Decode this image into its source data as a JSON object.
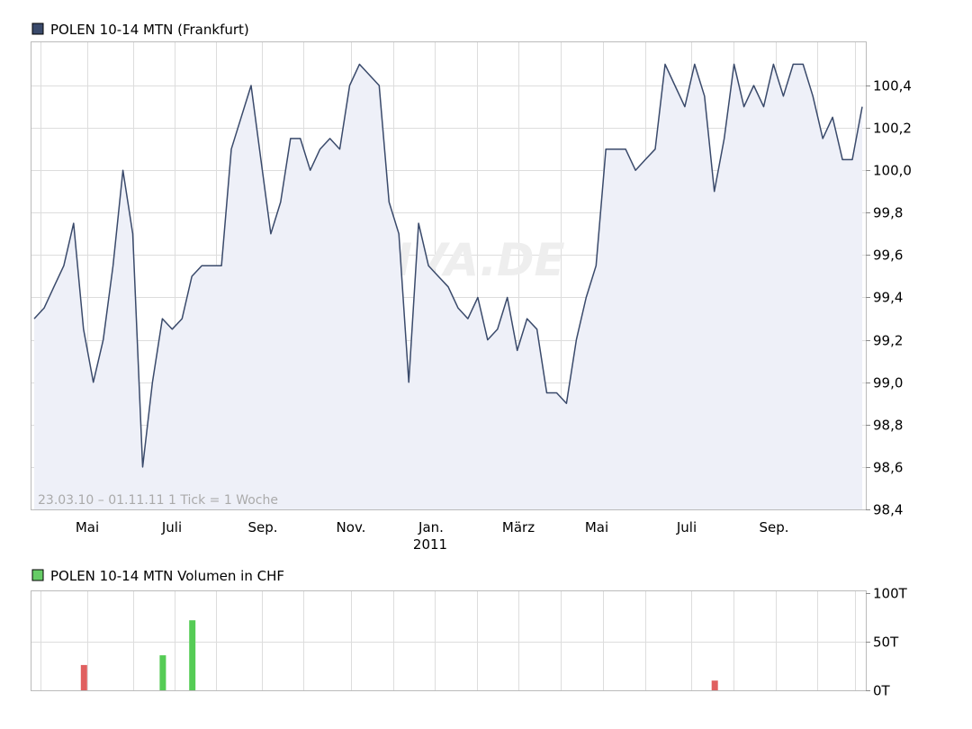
{
  "chart_data": [
    {
      "type": "area",
      "legend": {
        "label": "POLEN 10-14 MTN (Frankfurt)",
        "color": "#3a4a6b",
        "position": "top-left"
      },
      "info_text": "23.03.10 – 01.11.11   1 Tick = 1 Woche",
      "watermark": "ARIVA.DE",
      "x_tick_labels": [
        "Mai",
        "Juli",
        "Sep.",
        "Nov.",
        "Jan.",
        "März",
        "Mai",
        "Juli",
        "Sep."
      ],
      "x_year_label": "2011",
      "y_tick_labels": [
        "100,4",
        "100,2",
        "100,0",
        "99,8",
        "99,6",
        "99,4",
        "99,2",
        "99,0",
        "98,8",
        "98,6",
        "98,4"
      ],
      "ylim": [
        98.4,
        100.55
      ],
      "grid": true,
      "line_color": "#3a4a6b",
      "fill_color": "#eef0f8",
      "series": [
        {
          "values": [
            99.3,
            99.35,
            99.45,
            99.55,
            99.75,
            99.25,
            99.0,
            99.2,
            99.55,
            100.0,
            99.7,
            98.6,
            99.0,
            99.3,
            99.25,
            99.3,
            99.5,
            99.55,
            99.55,
            99.55,
            100.1,
            100.25,
            100.4,
            100.05,
            99.7,
            99.85,
            100.15,
            100.15,
            100.0,
            100.1,
            100.15,
            100.1,
            100.4,
            100.5,
            100.45,
            100.4,
            99.85,
            99.7,
            99.0,
            99.75,
            99.55,
            99.5,
            99.45,
            99.35,
            99.3,
            99.4,
            99.2,
            99.25,
            99.4,
            99.15,
            99.3,
            99.25,
            98.95,
            98.95,
            98.9,
            99.2,
            99.4,
            99.55,
            100.1,
            100.1,
            100.1,
            100.0,
            100.05,
            100.1,
            100.5,
            100.4,
            100.3,
            100.5,
            100.35,
            99.9,
            100.15,
            100.5,
            100.3,
            100.4,
            100.3,
            100.5,
            100.35,
            100.5,
            100.5,
            100.35,
            100.15,
            100.25,
            100.05,
            100.05,
            100.3
          ]
        }
      ]
    },
    {
      "type": "bar",
      "legend": {
        "label": "POLEN 10-14 MTN Volumen in CHF",
        "color": "#66cc66",
        "position": "top-left"
      },
      "y_tick_labels": [
        "100T",
        "50T",
        "0T"
      ],
      "ylim": [
        0,
        100
      ],
      "grid": true,
      "bars": [
        {
          "index": 5,
          "value": 26,
          "color": "#e06060"
        },
        {
          "index": 13,
          "value": 36,
          "color": "#55cc55"
        },
        {
          "index": 16,
          "value": 72,
          "color": "#55cc55"
        },
        {
          "index": 69,
          "value": 10,
          "color": "#e06060"
        }
      ]
    }
  ]
}
